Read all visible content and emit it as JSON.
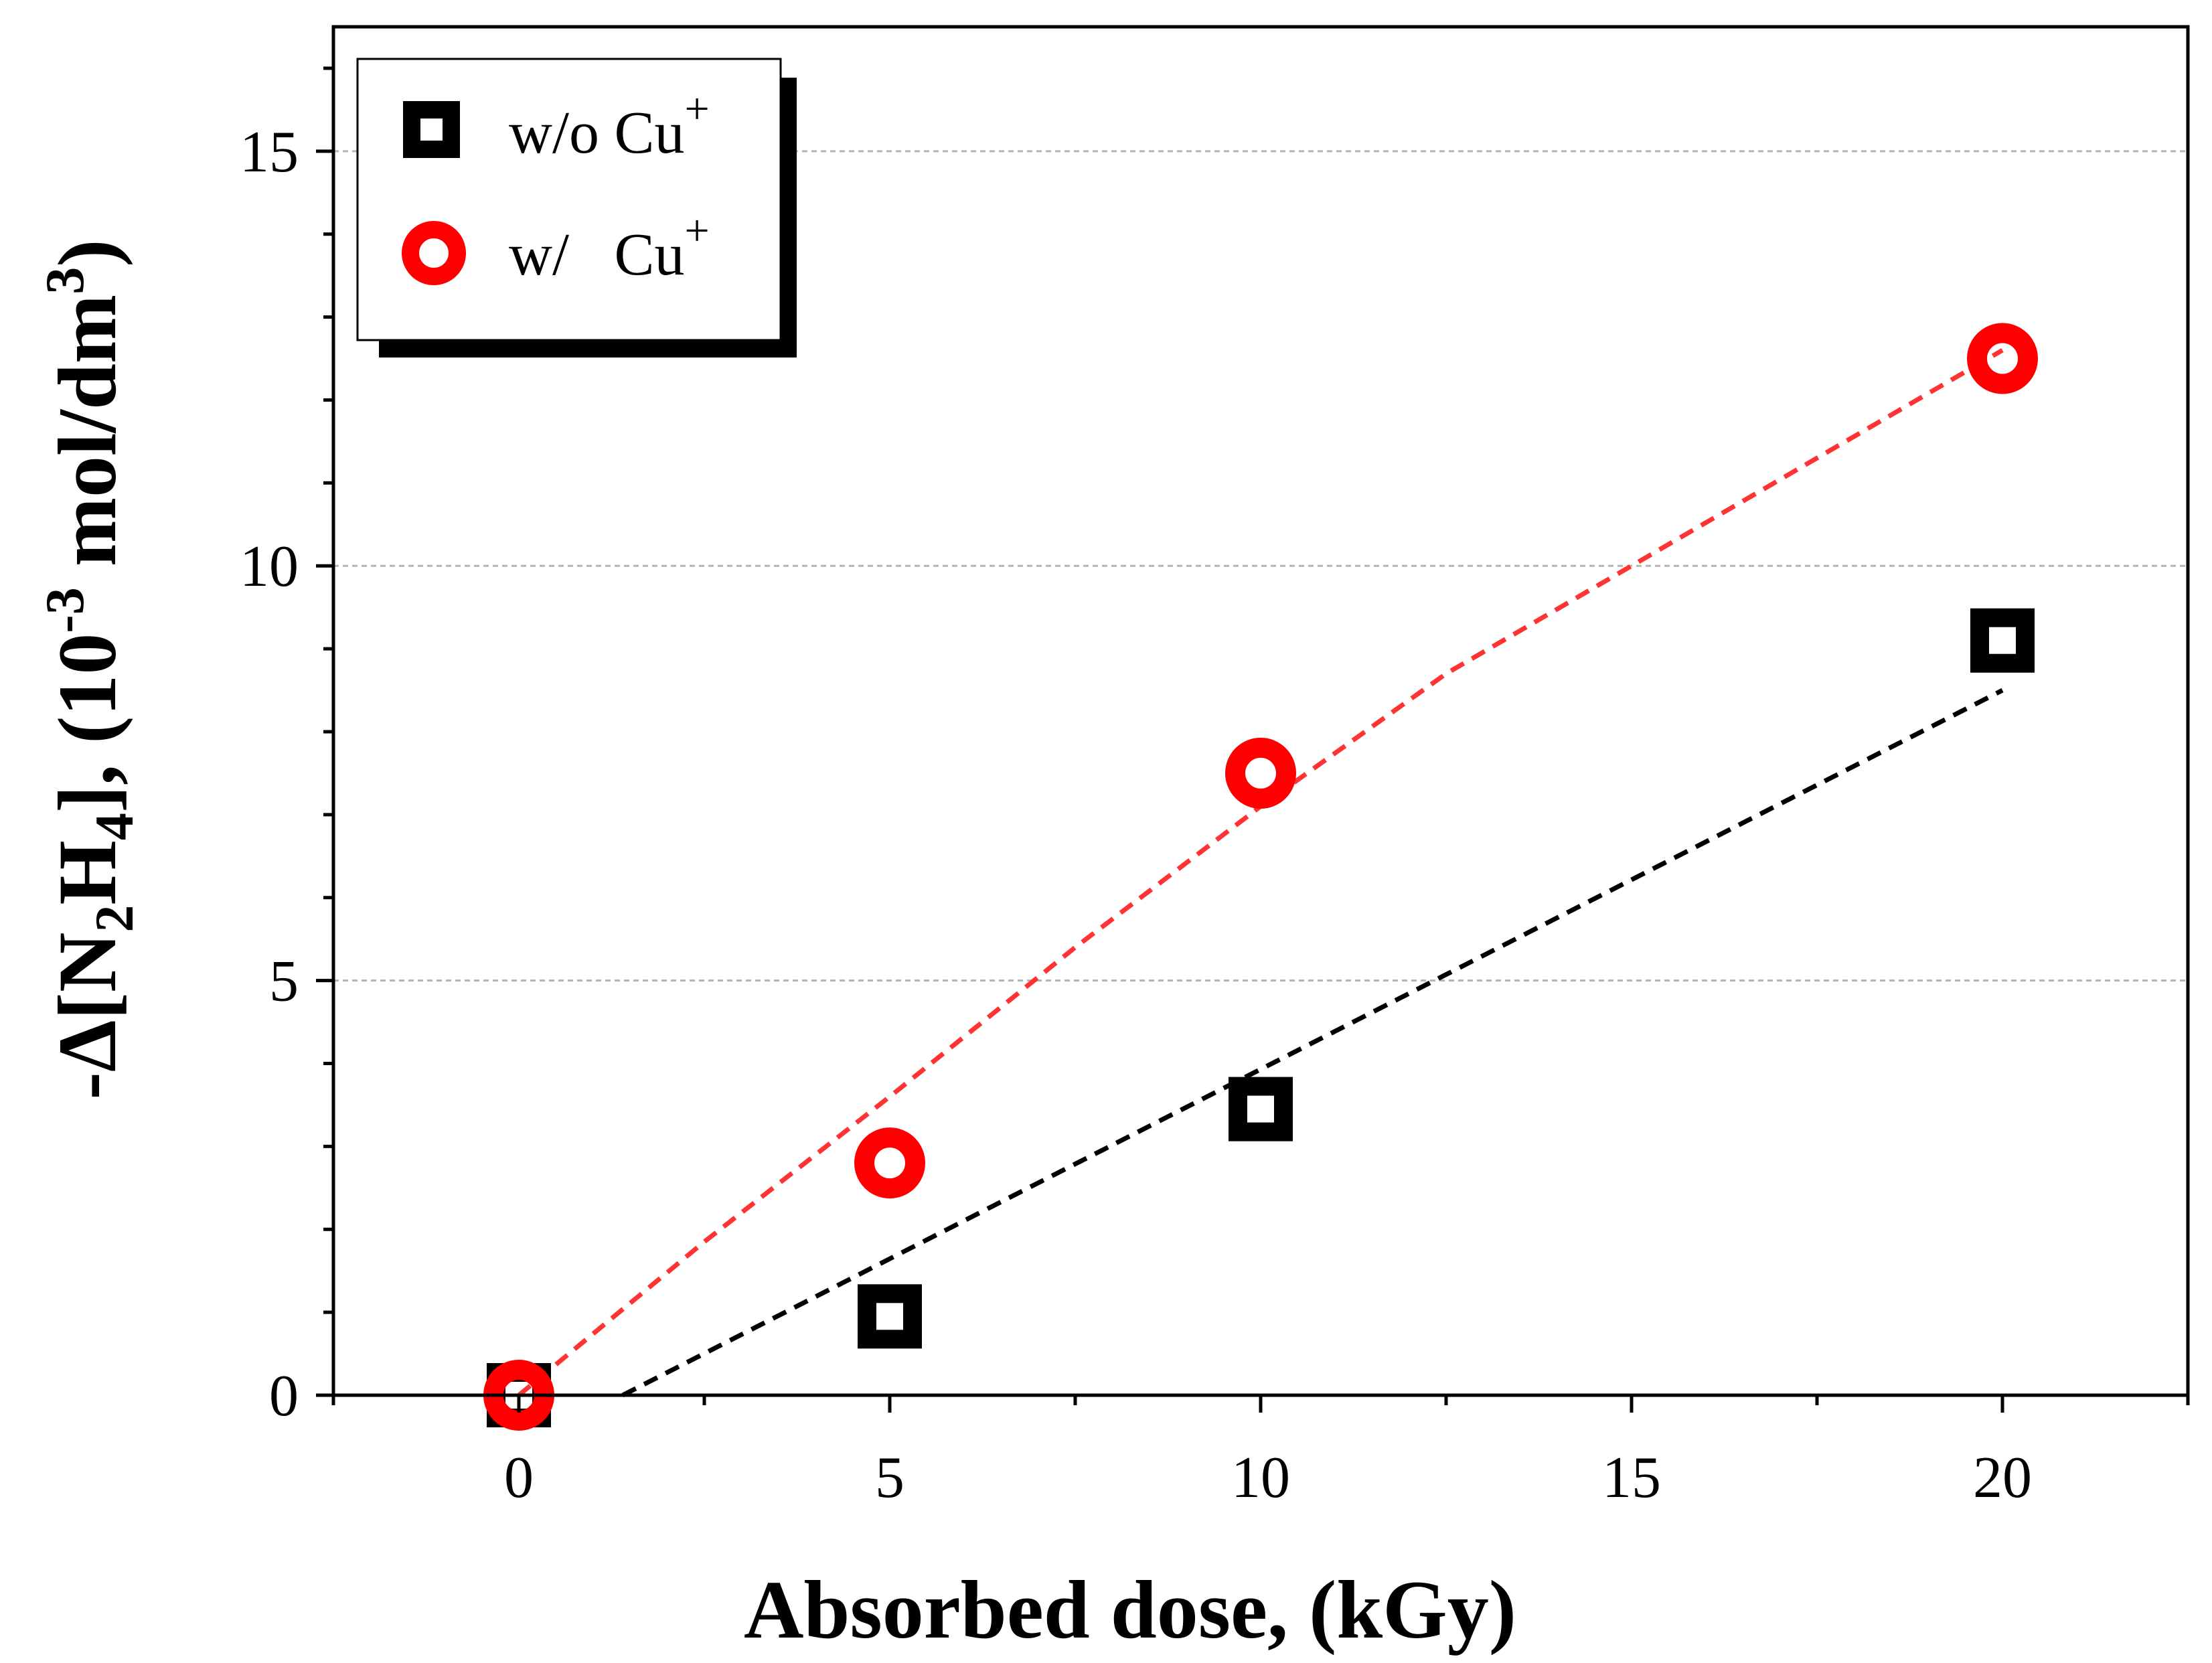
{
  "chart_data": {
    "type": "scatter",
    "xlabel": "Absorbed dose, (kGy)",
    "ylabel": {
      "prefix": "-Δ[N",
      "sub1": "2",
      "mid1": "H",
      "sub2": "4",
      "mid2": "], (10",
      "sup1": "-3",
      "mid3": " mol/dm",
      "sup2": "3",
      "suffix": ")"
    },
    "xlim": [
      -2.5,
      22.5
    ],
    "ylim": [
      0,
      16.5
    ],
    "x_ticks": [
      0,
      5,
      10,
      15,
      20
    ],
    "y_ticks": [
      0,
      5,
      10,
      15
    ],
    "grid": "horizontal dashed at major y ticks",
    "legend_position": "top-left",
    "series": [
      {
        "name": "w/o Cu+",
        "legend_label": "w/o Cu",
        "legend_sup": "+",
        "marker": "square",
        "color": "#000000",
        "x": [
          0,
          5,
          10,
          20
        ],
        "y": [
          0.0,
          0.95,
          3.45,
          9.1
        ],
        "fit_line": {
          "x": [
            1.4,
            20
          ],
          "y": [
            0.0,
            8.5
          ],
          "color": "#000000"
        }
      },
      {
        "name": "w/ Cu+",
        "legend_label": "w/   Cu",
        "legend_sup": "+",
        "marker": "circle",
        "color": "#ff0000",
        "x": [
          0,
          5,
          10,
          20
        ],
        "y": [
          0.0,
          2.8,
          7.5,
          12.5
        ],
        "fit_line": {
          "x": [
            0,
            2.5,
            5,
            7.5,
            10,
            12.5,
            15,
            17.5,
            20
          ],
          "y": [
            0.0,
            1.85,
            3.6,
            5.4,
            7.1,
            8.7,
            10.0,
            11.3,
            12.6
          ],
          "color": "#ff3333"
        }
      }
    ]
  }
}
